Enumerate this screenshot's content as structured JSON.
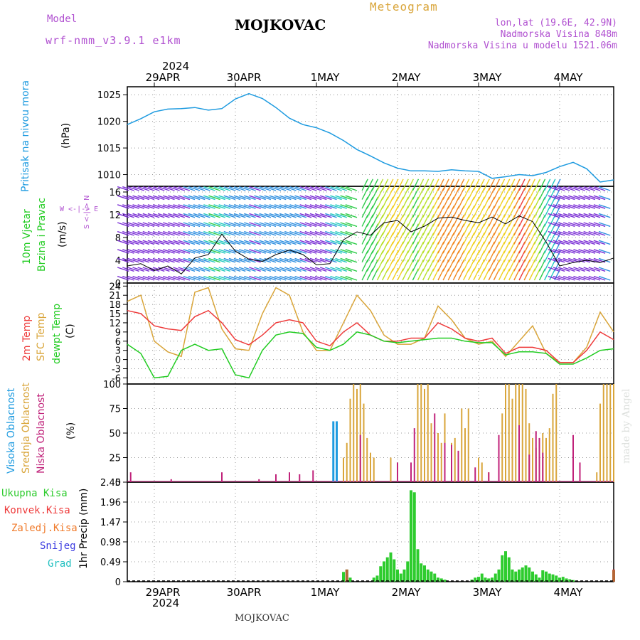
{
  "header": {
    "model_label": "Model",
    "model_name": "wrf-nmm_v3.9.1 e1km",
    "title": "MOJKOVAC",
    "subtitle": "Meteogram",
    "location": "lon,lat (19.6E, 42.9N)",
    "elevation": "Nadmorska Visina 848m",
    "model_elevation": "Nadmorska Visina u modelu 1521.06m",
    "year_top": "2024",
    "year_bottom": "2024",
    "footer": "MOJKOVAC",
    "credit": "made by Angel"
  },
  "colors": {
    "pressure": "#1e9be0",
    "temp2m": "#ee3b3b",
    "sfc_temp": "#d9a53a",
    "dewpoint": "#22cc22",
    "high_cloud": "#1e9be0",
    "mid_cloud": "#d9a53a",
    "low_cloud": "#c0227a",
    "total_precip": "#2ecc2e",
    "conv_precip": "#ee3b3b",
    "frozen_precip": "#f07a2a",
    "snow": "#3a3ae0",
    "hail": "#22c0c0",
    "label_purple": "#b050d0"
  },
  "panel_labels": {
    "pressure": {
      "title": "Pritisak na nivou mora",
      "unit": "(hPa)"
    },
    "wind": {
      "title1": "10m Vjetar",
      "title2": "Brzina i Pravac",
      "unit": "(m/s)",
      "compass": "W <-|-> E",
      "compass2": "S <-|-> N"
    },
    "temp": {
      "t1": "2m Temp",
      "t2": "SFC Temp",
      "t3": "dewpt Temp",
      "unit": "(C)"
    },
    "cloud": {
      "c1": "Visoka Oblacnost",
      "c2": "Srednja Oblacnost",
      "c3": "Niska Oblacnost",
      "unit": "(%)"
    },
    "precip": {
      "unit": "1hr Precip (mm)",
      "legend": [
        "Ukupna Kisa",
        "Konvek.Kisa",
        "Zaledj.Kisa",
        "Snijeg",
        "Grad"
      ]
    }
  },
  "chart_data": [
    {
      "type": "line",
      "title": "Pritisak na nivou mora",
      "ylabel": "(hPa)",
      "categories": [
        "29APR",
        "30APR",
        "1MAY",
        "2MAY",
        "3MAY",
        "4MAY"
      ],
      "x_start_hour": -8,
      "x_end_hour": 136,
      "ylim": [
        1007.8,
        1026.5
      ],
      "yticks": [
        1010,
        1015,
        1020,
        1025
      ],
      "grid": true,
      "series": [
        {
          "name": "Pritisak na nivou mora",
          "x": [
            -8,
            -4,
            0,
            4,
            8,
            12,
            16,
            20,
            24,
            28,
            32,
            36,
            40,
            44,
            48,
            52,
            56,
            60,
            64,
            68,
            72,
            76,
            80,
            84,
            88,
            92,
            96,
            100,
            104,
            108,
            112,
            116,
            120,
            124,
            128,
            132,
            136
          ],
          "values": [
            1019.4,
            1020.5,
            1021.8,
            1022.3,
            1022.4,
            1022.6,
            1022.1,
            1022.4,
            1024.2,
            1025.2,
            1024.3,
            1022.6,
            1020.6,
            1019.4,
            1018.8,
            1017.8,
            1016.4,
            1014.7,
            1013.5,
            1012.2,
            1011.2,
            1010.7,
            1010.7,
            1010.6,
            1010.9,
            1010.7,
            1010.6,
            1009.3,
            1009.6,
            1010.0,
            1009.8,
            1010.4,
            1011.5,
            1012.3,
            1011.1,
            1008.6,
            1009.0
          ]
        }
      ]
    },
    {
      "type": "line",
      "title": "10m Vjetar Brzina i Pravac",
      "ylabel": "(m/s)",
      "ylim": [
        0,
        17
      ],
      "yticks": [
        0,
        4,
        8,
        12,
        16
      ],
      "grid": true,
      "series": [
        {
          "name": "10m Vjetar",
          "x": [
            -8,
            -4,
            0,
            4,
            8,
            12,
            16,
            20,
            24,
            28,
            32,
            36,
            40,
            44,
            48,
            52,
            56,
            60,
            64,
            68,
            72,
            76,
            80,
            84,
            88,
            92,
            96,
            100,
            104,
            108,
            112,
            116,
            120,
            124,
            128,
            132,
            136
          ],
          "values": [
            3.0,
            3.4,
            2.2,
            3.0,
            1.6,
            4.4,
            5.0,
            8.6,
            5.6,
            4.2,
            3.8,
            5.0,
            5.8,
            5.0,
            3.2,
            3.4,
            7.6,
            9.0,
            8.4,
            10.6,
            11.0,
            9.0,
            10.0,
            11.4,
            11.6,
            11.0,
            10.6,
            11.6,
            10.4,
            11.8,
            10.8,
            7.2,
            3.0,
            3.6,
            4.0,
            3.6,
            4.4
          ]
        }
      ]
    },
    {
      "type": "line",
      "title": "2m Temp / SFC Temp / dewpt Temp",
      "ylabel": "(C)",
      "ylim": [
        -8,
        25
      ],
      "yticks": [
        -6,
        -3,
        0,
        3,
        6,
        9,
        12,
        15,
        18,
        21,
        24
      ],
      "grid": true,
      "series": [
        {
          "name": "2m Temp",
          "x": [
            -8,
            -4,
            0,
            4,
            8,
            12,
            16,
            20,
            24,
            28,
            32,
            36,
            40,
            44,
            48,
            52,
            56,
            60,
            64,
            68,
            72,
            76,
            80,
            84,
            88,
            92,
            96,
            100,
            104,
            108,
            112,
            116,
            120,
            124,
            128,
            132,
            136
          ],
          "values": [
            16.0,
            15.0,
            11.0,
            10.0,
            9.5,
            14.0,
            16.0,
            12.0,
            6.5,
            4.8,
            8.0,
            12.0,
            13.0,
            12.0,
            6.0,
            4.5,
            9.0,
            12.0,
            8.0,
            6.0,
            6.0,
            7.0,
            7.0,
            12.0,
            10.0,
            7.0,
            6.0,
            7.0,
            2.0,
            4.0,
            4.0,
            3.0,
            -1.0,
            -1.0,
            3.0,
            9.0,
            6.5
          ]
        },
        {
          "name": "SFC Temp",
          "x": [
            -8,
            -4,
            0,
            4,
            8,
            12,
            16,
            20,
            24,
            28,
            32,
            36,
            40,
            44,
            48,
            52,
            56,
            60,
            64,
            68,
            72,
            76,
            80,
            84,
            88,
            92,
            96,
            100,
            104,
            108,
            112,
            116,
            120,
            124,
            128,
            132,
            136
          ],
          "values": [
            19.0,
            21.0,
            6.0,
            2.5,
            1.0,
            22.0,
            23.5,
            10.0,
            3.5,
            3.0,
            15.0,
            23.5,
            21.0,
            9.0,
            3.0,
            3.0,
            12.0,
            21.0,
            16.0,
            8.0,
            5.0,
            5.0,
            7.0,
            17.5,
            13.0,
            7.0,
            5.0,
            6.0,
            1.0,
            6.0,
            11.0,
            2.0,
            -1.0,
            -1.0,
            4.0,
            15.5,
            9.0
          ]
        },
        {
          "name": "dewpt Temp",
          "x": [
            -8,
            -4,
            0,
            4,
            8,
            12,
            16,
            20,
            24,
            28,
            32,
            36,
            40,
            44,
            48,
            52,
            56,
            60,
            64,
            68,
            72,
            76,
            80,
            84,
            88,
            92,
            96,
            100,
            104,
            108,
            112,
            116,
            120,
            124,
            128,
            132,
            136
          ],
          "values": [
            5.0,
            2.0,
            -6.0,
            -5.5,
            3.0,
            5.0,
            3.0,
            3.5,
            -5.0,
            -6.0,
            3.0,
            8.0,
            9.0,
            8.5,
            4.0,
            3.0,
            5.0,
            9.0,
            8.0,
            6.0,
            5.5,
            6.0,
            6.5,
            7.0,
            7.0,
            6.0,
            5.5,
            5.5,
            1.5,
            2.5,
            2.5,
            2.0,
            -1.5,
            -1.5,
            0.5,
            3.0,
            3.5
          ]
        }
      ]
    },
    {
      "type": "bar",
      "title": "Visoka / Srednja / Niska Oblacnost",
      "ylabel": "(%)",
      "ylim": [
        0,
        100
      ],
      "yticks": [
        0,
        25,
        50,
        75,
        100
      ],
      "grid": true,
      "series": [
        {
          "name": "Visoka Oblacnost",
          "x": [
            53,
            54
          ],
          "values": [
            62,
            62
          ]
        },
        {
          "name": "Srednja Oblacnost",
          "x": [
            56,
            57,
            58,
            59,
            60,
            61,
            62,
            63,
            64,
            65,
            70,
            78,
            79,
            80,
            81,
            82,
            84,
            85,
            86,
            88,
            89,
            91,
            92,
            93,
            96,
            97,
            99,
            103,
            104,
            105,
            106,
            107,
            108,
            109,
            110,
            111,
            112,
            113,
            115,
            116,
            117,
            118,
            119,
            131,
            132,
            133,
            134,
            135,
            136
          ],
          "values": [
            25,
            40,
            85,
            100,
            95,
            100,
            80,
            45,
            30,
            25,
            25,
            100,
            100,
            95,
            100,
            60,
            50,
            40,
            70,
            40,
            45,
            75,
            55,
            75,
            25,
            20,
            10,
            70,
            100,
            100,
            85,
            100,
            100,
            100,
            95,
            60,
            45,
            35,
            50,
            45,
            55,
            90,
            100,
            10,
            80,
            100,
            100,
            100,
            100
          ]
        },
        {
          "name": "Niska Oblacnost",
          "x": [
            -7,
            5,
            20,
            31,
            36,
            40,
            43,
            47,
            61,
            72,
            76,
            77,
            83,
            86,
            88,
            90,
            95,
            99,
            102,
            108,
            111,
            113,
            114,
            115,
            124,
            126
          ],
          "values": [
            10,
            3,
            10,
            3,
            8,
            10,
            8,
            12,
            48,
            20,
            20,
            55,
            70,
            40,
            38,
            32,
            15,
            10,
            48,
            58,
            28,
            52,
            45,
            30,
            48,
            20
          ]
        }
      ]
    },
    {
      "type": "bar",
      "title": "1hr Precip",
      "ylabel": "1hr Precip (mm)",
      "ylim": [
        0,
        2.45
      ],
      "yticks": [
        0,
        0.49,
        0.98,
        1.47,
        1.96,
        2.45
      ],
      "grid": true,
      "series": [
        {
          "name": "Ukupna Kisa",
          "x": [
            56,
            57,
            58,
            65,
            66,
            67,
            68,
            69,
            70,
            71,
            72,
            73,
            74,
            75,
            76,
            77,
            78,
            79,
            80,
            81,
            82,
            83,
            84,
            85,
            86,
            94,
            95,
            96,
            97,
            98,
            99,
            100,
            101,
            102,
            103,
            104,
            105,
            106,
            107,
            108,
            109,
            110,
            111,
            112,
            113,
            114,
            115,
            116,
            117,
            118,
            119,
            120,
            121,
            122,
            123,
            124,
            136
          ],
          "values": [
            0.24,
            0.3,
            0.1,
            0.1,
            0.15,
            0.38,
            0.5,
            0.6,
            0.72,
            0.55,
            0.3,
            0.2,
            0.3,
            0.5,
            2.25,
            2.2,
            0.8,
            0.45,
            0.4,
            0.3,
            0.25,
            0.2,
            0.1,
            0.08,
            0.05,
            0.05,
            0.1,
            0.12,
            0.2,
            0.1,
            0.08,
            0.1,
            0.2,
            0.3,
            0.65,
            0.75,
            0.6,
            0.3,
            0.25,
            0.3,
            0.35,
            0.4,
            0.35,
            0.25,
            0.18,
            0.1,
            0.28,
            0.25,
            0.2,
            0.18,
            0.15,
            0.1,
            0.12,
            0.08,
            0.06,
            0.04,
            0.28
          ]
        },
        {
          "name": "Konvek.Kisa",
          "x": [
            57,
            136
          ],
          "values": [
            0.3,
            0.3
          ]
        }
      ]
    }
  ]
}
